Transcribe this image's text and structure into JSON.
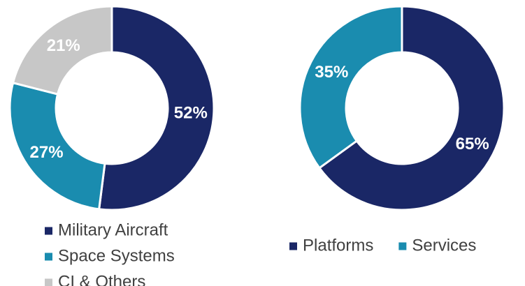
{
  "chart_data": [
    {
      "type": "pie",
      "donut": true,
      "categories": [
        "Military Aircraft",
        "Space Systems",
        "CI & Others"
      ],
      "values": [
        52,
        27,
        21
      ],
      "labels": [
        "52%",
        "27%",
        "21%"
      ],
      "colors": [
        "#1a2766",
        "#1a8caf",
        "#c7c7c7"
      ],
      "legend_position": "bottom"
    },
    {
      "type": "pie",
      "donut": true,
      "categories": [
        "Platforms",
        "Services"
      ],
      "values": [
        65,
        35
      ],
      "labels": [
        "65%",
        "35%"
      ],
      "colors": [
        "#1a2766",
        "#1a8caf"
      ],
      "legend_position": "bottom"
    }
  ]
}
